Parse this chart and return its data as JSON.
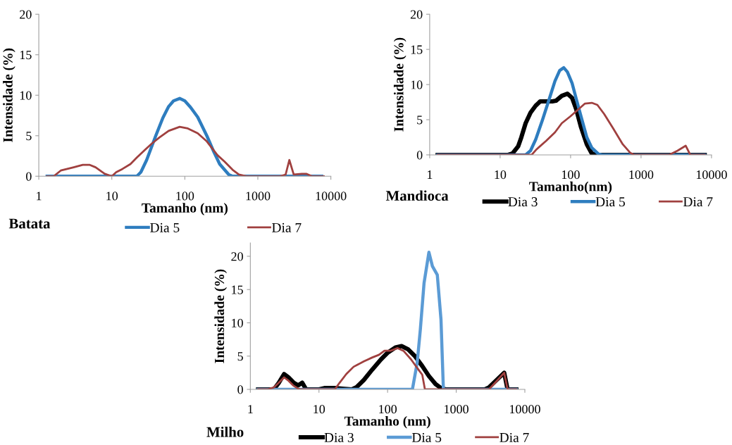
{
  "chart_data": [
    {
      "type": "line",
      "title": "Batata",
      "xlabel": "Tamanho (nm)",
      "ylabel": "Intensidade (%)",
      "log": "x",
      "xlim": [
        1,
        10000
      ],
      "xticks": [
        1,
        10,
        100,
        1000,
        10000
      ],
      "ylim": [
        0,
        20
      ],
      "yticks": [
        0,
        5,
        10,
        15,
        20
      ],
      "grid": false,
      "legend": "bottom",
      "series": [
        {
          "name": "Dia 5",
          "color": "#2e7dbf",
          "x": [
            1.3,
            22,
            25,
            30,
            40,
            50,
            60,
            70,
            85,
            100,
            120,
            150,
            200,
            250,
            300,
            400,
            450,
            7500
          ],
          "values": [
            0,
            0,
            0.5,
            2,
            5,
            7.2,
            8.6,
            9.3,
            9.6,
            9.3,
            8.5,
            7.3,
            5,
            3,
            1.5,
            0.2,
            0,
            0
          ]
        },
        {
          "name": "Dia 7",
          "color": "#a0403f",
          "x": [
            1.3,
            1.6,
            2,
            3,
            4,
            5,
            6,
            8,
            10,
            11.5,
            14,
            18,
            22,
            28,
            35,
            45,
            60,
            85,
            110,
            150,
            200,
            280,
            350,
            450,
            550,
            700,
            2000,
            2400,
            2700,
            3100,
            4000,
            4600,
            5500,
            8000
          ],
          "values": [
            0,
            0,
            0.7,
            1.1,
            1.4,
            1.4,
            1.1,
            0.3,
            0,
            0.5,
            0.9,
            1.5,
            2.3,
            3.2,
            4,
            4.8,
            5.6,
            6.1,
            5.9,
            5.3,
            4.3,
            2.6,
            1.8,
            0.8,
            0.2,
            0,
            0,
            0.2,
            2.0,
            0.2,
            0.3,
            0.3,
            0,
            0
          ]
        }
      ]
    },
    {
      "type": "line",
      "title": "Mandioca",
      "xlabel": "Tamanho(nm)",
      "ylabel": "Intensidade (%)",
      "log": "x",
      "xlim": [
        1,
        10000
      ],
      "xticks": [
        1,
        10,
        100,
        1000,
        10000
      ],
      "ylim": [
        0,
        20
      ],
      "yticks": [
        0,
        5,
        10,
        15,
        20
      ],
      "grid": false,
      "legend": "bottom",
      "series": [
        {
          "name": "Dia 3",
          "color": "#000000",
          "x": [
            1.3,
            13,
            15,
            18,
            20,
            23,
            27,
            32,
            37,
            45,
            55,
            62,
            75,
            90,
            105,
            120,
            140,
            170,
            200,
            240,
            8000
          ],
          "values": [
            0,
            0,
            0.2,
            1.2,
            2.5,
            4.5,
            6.0,
            7.0,
            7.6,
            7.6,
            7.6,
            7.7,
            8.4,
            8.7,
            8.1,
            6.5,
            4,
            1.5,
            0.2,
            0,
            0
          ]
        },
        {
          "name": "Dia 5",
          "color": "#2e7dbf",
          "x": [
            1.3,
            23,
            27,
            32,
            40,
            50,
            60,
            70,
            80,
            90,
            105,
            120,
            145,
            170,
            200,
            250,
            280,
            8000
          ],
          "values": [
            0,
            0,
            0.6,
            2.2,
            5,
            8,
            10.5,
            12,
            12.4,
            11.8,
            10.2,
            8.0,
            5,
            2.5,
            1,
            0.1,
            0,
            0
          ]
        },
        {
          "name": "Dia 7",
          "color": "#a0403f",
          "x": [
            1.3,
            28,
            33,
            45,
            60,
            75,
            100,
            130,
            160,
            200,
            240,
            300,
            400,
            550,
            700,
            800,
            2500,
            3300,
            4300,
            5000,
            8000
          ],
          "values": [
            0,
            0,
            0.8,
            2,
            3.2,
            4.5,
            5.5,
            6.5,
            7.3,
            7.4,
            7.1,
            5.8,
            3.8,
            1.5,
            0.3,
            0,
            0,
            0.6,
            1.3,
            0,
            0
          ]
        }
      ]
    },
    {
      "type": "line",
      "title": "Milho",
      "xlabel": "Tamanho (nm)",
      "ylabel": "Intensidade (%)",
      "log": "x",
      "xlim": [
        1,
        10000
      ],
      "xticks": [
        1,
        10,
        100,
        1000,
        10000
      ],
      "ylim": [
        0,
        22
      ],
      "yticks": [
        0,
        5,
        10,
        15,
        20
      ],
      "grid": false,
      "legend": "bottom",
      "series": [
        {
          "name": "Dia 3",
          "color": "#000000",
          "x": [
            1.3,
            2.2,
            2.6,
            3.1,
            3.6,
            4.3,
            5,
            5.7,
            6.5,
            10,
            12,
            17,
            22,
            30,
            35,
            45,
            60,
            80,
            100,
            130,
            160,
            200,
            250,
            320,
            400,
            500,
            600,
            700,
            2600,
            3000,
            3700,
            5000,
            5600,
            7500
          ],
          "values": [
            0,
            0,
            1,
            2.3,
            1.8,
            1.0,
            0.6,
            1.0,
            0,
            0,
            0.2,
            0.2,
            0.1,
            0,
            0.3,
            1.4,
            3,
            4.5,
            5.5,
            6.3,
            6.5,
            6,
            5,
            3.5,
            2,
            0.8,
            0.2,
            0,
            0,
            0.3,
            1.2,
            2.5,
            0,
            0
          ]
        },
        {
          "name": "Dia 5",
          "color": "#5b9bd5",
          "x": [
            1.3,
            230,
            270,
            300,
            340,
            400,
            450,
            530,
            600,
            650,
            7500
          ],
          "values": [
            0,
            0,
            4,
            9,
            16,
            20.6,
            18.5,
            17.2,
            10.5,
            0,
            0
          ]
        },
        {
          "name": "Dia 7",
          "color": "#a0403f",
          "x": [
            1.3,
            1.8,
            2.2,
            2.6,
            3.1,
            3.6,
            4.2,
            5,
            5.5,
            17,
            20,
            25,
            32,
            45,
            60,
            75,
            90,
            110,
            140,
            170,
            220,
            280,
            320,
            350,
            3000,
            3700,
            5000,
            5600,
            7500
          ],
          "values": [
            0,
            0,
            0.3,
            1.0,
            1.8,
            1.3,
            0.6,
            0.1,
            0,
            0,
            1,
            2.3,
            3.4,
            4.2,
            4.8,
            5.2,
            5.8,
            5.8,
            6.2,
            5.8,
            4.5,
            3.0,
            2.2,
            0,
            0,
            1.0,
            2.5,
            0,
            0
          ]
        }
      ]
    }
  ]
}
